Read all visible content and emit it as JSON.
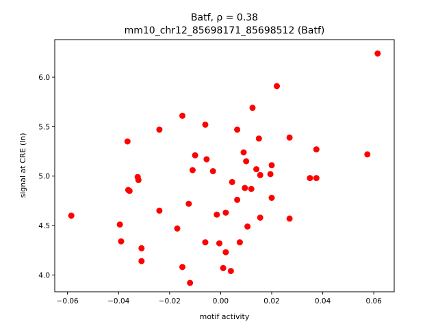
{
  "chart_data": {
    "type": "scatter",
    "title_line1": "Batf, ρ = 0.38",
    "title_line2": "mm10_chr12_85698171_85698512 (Batf)",
    "xlabel": "motif activity",
    "ylabel": "signal at CRE (ln)",
    "xlim": [
      -0.065,
      0.068
    ],
    "ylim": [
      3.83,
      6.38
    ],
    "xticks": [
      -0.06,
      -0.04,
      -0.02,
      0.0,
      0.02,
      0.04,
      0.06
    ],
    "xtick_labels": [
      "−0.06",
      "−0.04",
      "−0.02",
      "0.00",
      "0.02",
      "0.04",
      "0.06"
    ],
    "yticks": [
      4.0,
      4.5,
      5.0,
      5.5,
      6.0
    ],
    "ytick_labels": [
      "4.0",
      "4.5",
      "5.0",
      "5.5",
      "6.0"
    ],
    "grid": false,
    "marker_color": "#ff0000",
    "points": [
      [
        -0.0585,
        4.6
      ],
      [
        -0.0395,
        4.51
      ],
      [
        -0.039,
        4.34
      ],
      [
        -0.0365,
        5.35
      ],
      [
        -0.0362,
        4.86
      ],
      [
        -0.0357,
        4.85
      ],
      [
        -0.0325,
        4.99
      ],
      [
        -0.0322,
        4.96
      ],
      [
        -0.031,
        4.27
      ],
      [
        -0.031,
        4.14
      ],
      [
        -0.024,
        5.47
      ],
      [
        -0.024,
        4.65
      ],
      [
        -0.017,
        4.47
      ],
      [
        -0.015,
        5.61
      ],
      [
        -0.015,
        4.08
      ],
      [
        -0.0125,
        4.72
      ],
      [
        -0.012,
        3.92
      ],
      [
        -0.011,
        5.06
      ],
      [
        -0.01,
        5.21
      ],
      [
        -0.006,
        5.52
      ],
      [
        -0.0055,
        5.17
      ],
      [
        -0.006,
        4.33
      ],
      [
        -0.003,
        5.05
      ],
      [
        -0.0015,
        4.61
      ],
      [
        -0.0005,
        4.32
      ],
      [
        0.001,
        4.07
      ],
      [
        0.002,
        4.63
      ],
      [
        0.002,
        4.23
      ],
      [
        0.004,
        4.04
      ],
      [
        0.0045,
        4.94
      ],
      [
        0.0065,
        5.47
      ],
      [
        0.0065,
        4.76
      ],
      [
        0.0075,
        4.33
      ],
      [
        0.009,
        5.24
      ],
      [
        0.0095,
        4.88
      ],
      [
        0.01,
        5.15
      ],
      [
        0.0105,
        4.49
      ],
      [
        0.012,
        4.87
      ],
      [
        0.0125,
        5.69
      ],
      [
        0.014,
        5.07
      ],
      [
        0.015,
        5.38
      ],
      [
        0.0155,
        5.01
      ],
      [
        0.0155,
        4.58
      ],
      [
        0.0195,
        5.02
      ],
      [
        0.02,
        5.11
      ],
      [
        0.02,
        4.78
      ],
      [
        0.022,
        5.91
      ],
      [
        0.027,
        5.39
      ],
      [
        0.027,
        4.57
      ],
      [
        0.035,
        4.98
      ],
      [
        0.0375,
        5.27
      ],
      [
        0.0375,
        4.98
      ],
      [
        0.0575,
        5.22
      ],
      [
        0.0615,
        6.24
      ]
    ]
  }
}
